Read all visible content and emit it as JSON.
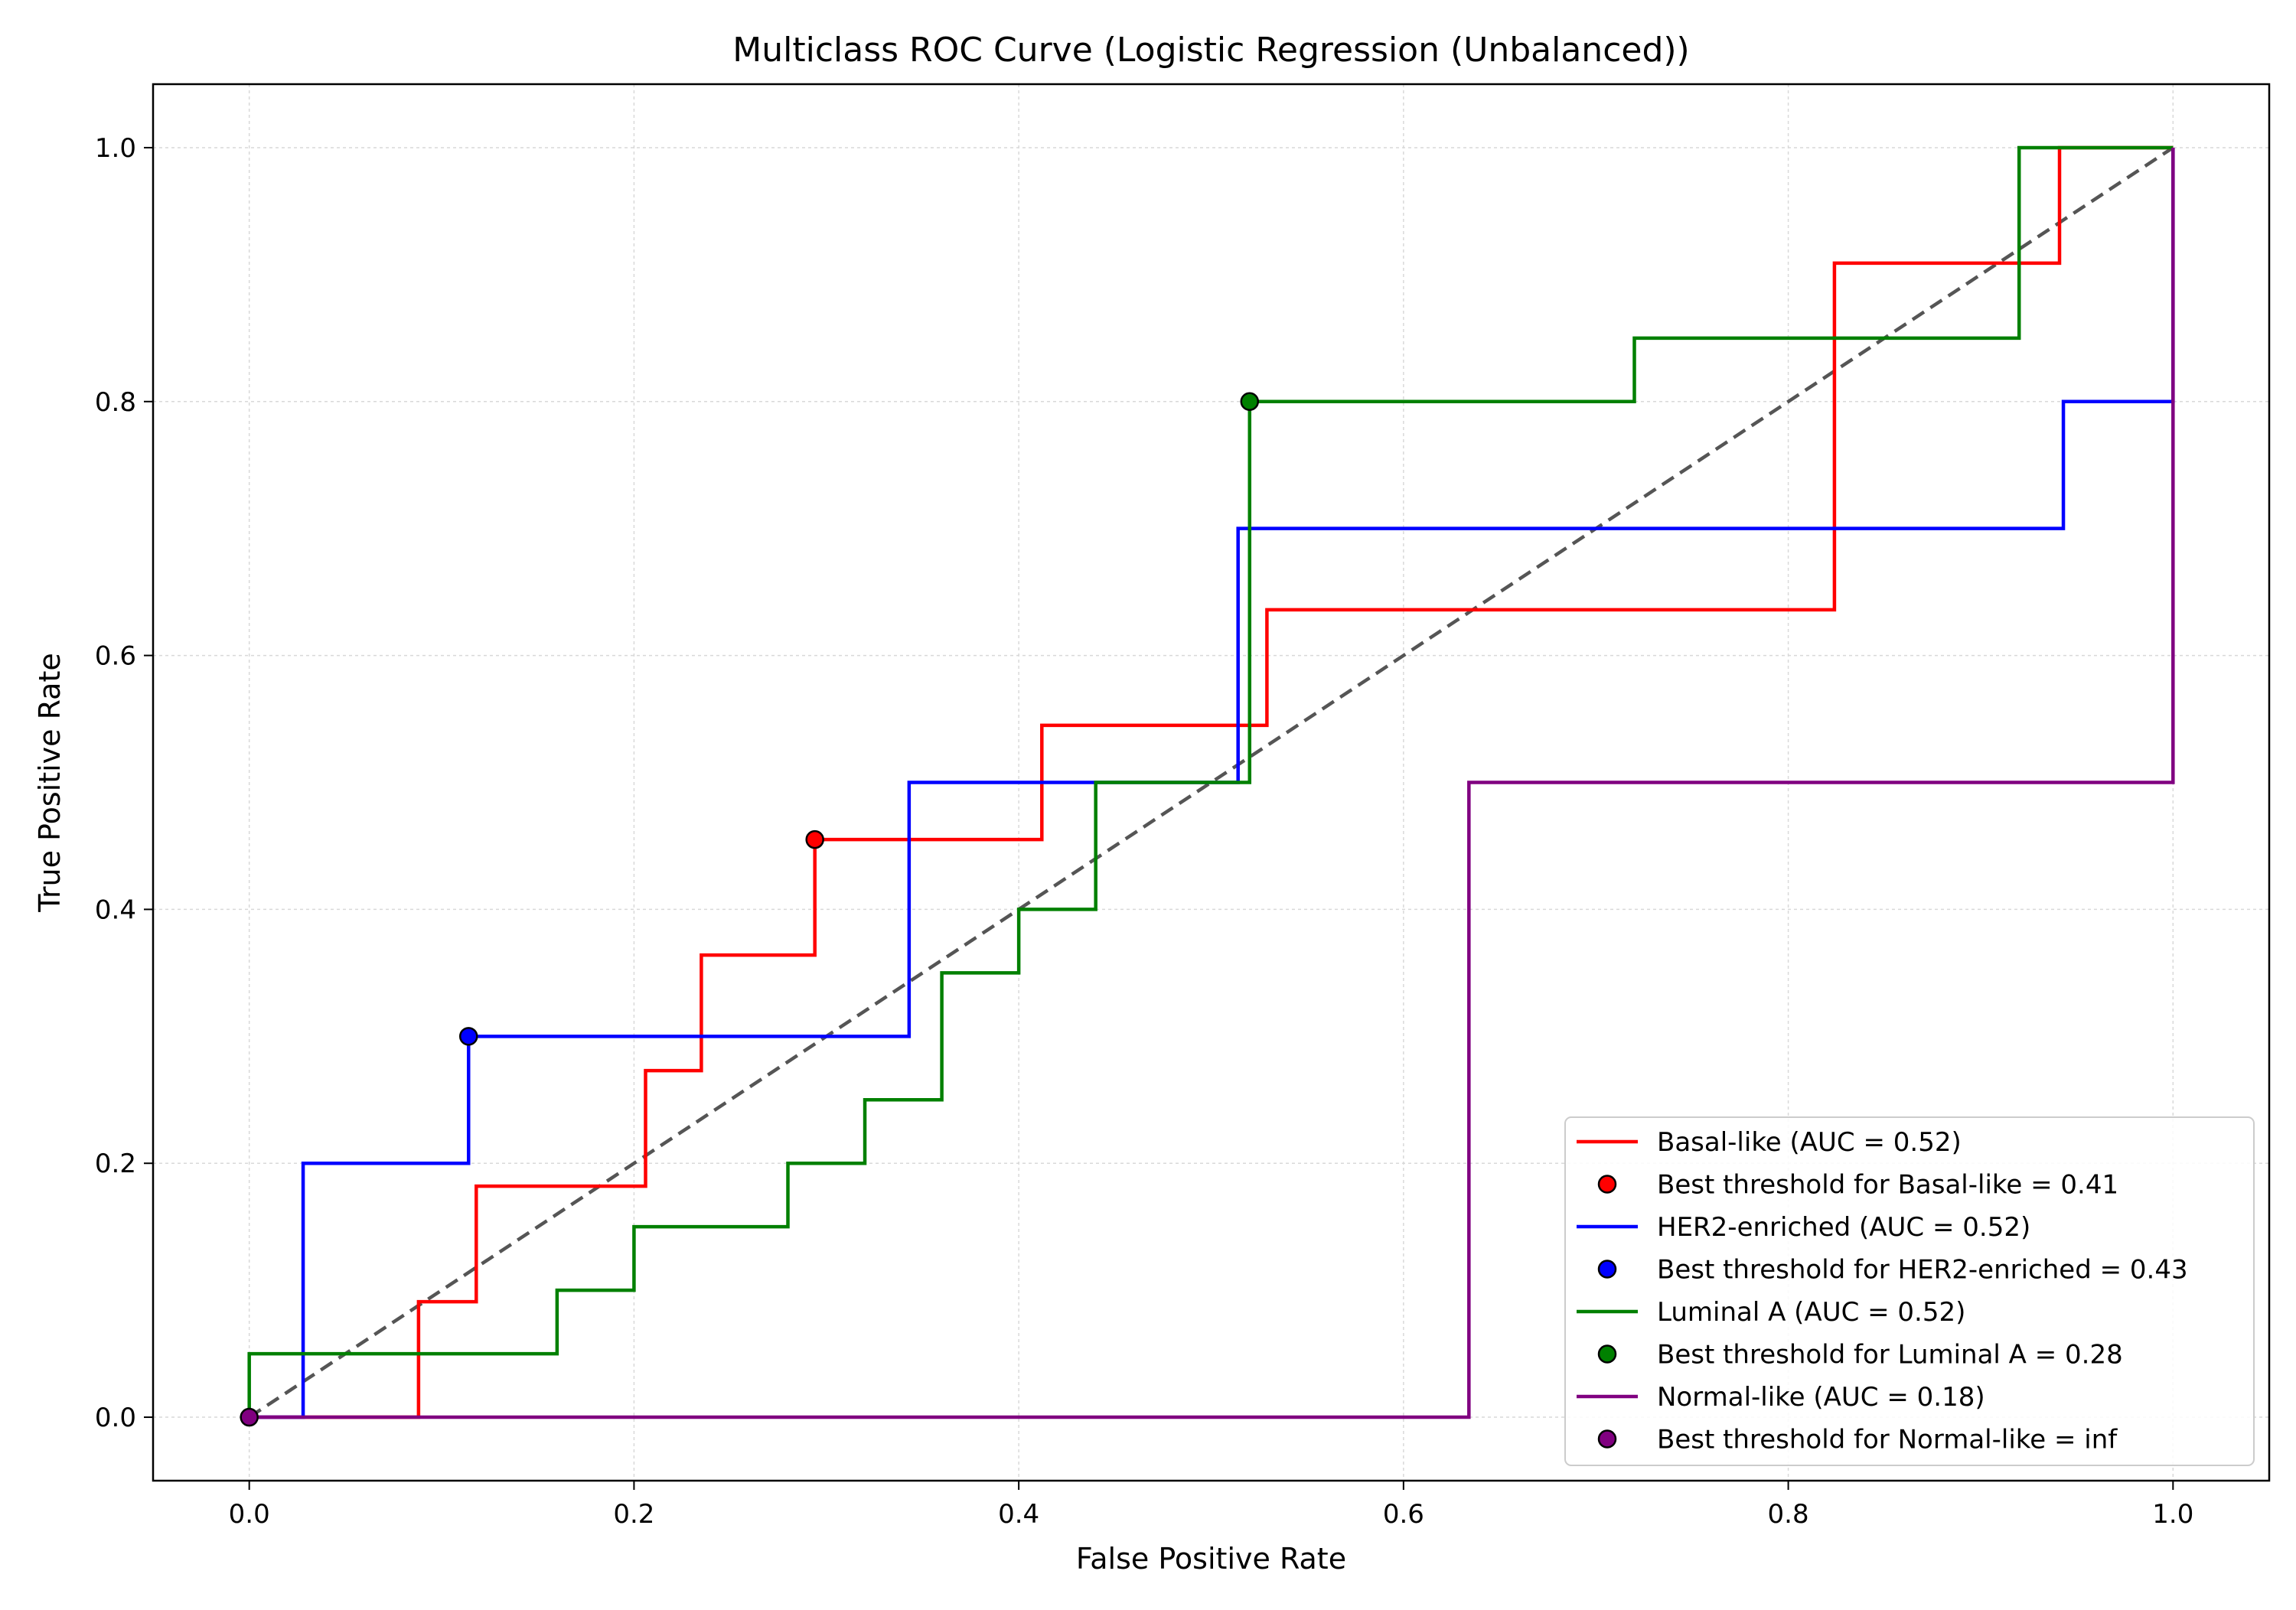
{
  "chart_data": {
    "type": "line",
    "title": "Multiclass ROC Curve (Logistic Regression (Unbalanced))",
    "xlabel": "False Positive Rate",
    "ylabel": "True Positive Rate",
    "xlim": [
      -0.05,
      1.05
    ],
    "ylim": [
      -0.05,
      1.05
    ],
    "xticks": [
      0.0,
      0.2,
      0.4,
      0.6,
      0.8,
      1.0
    ],
    "yticks": [
      0.0,
      0.2,
      0.4,
      0.6,
      0.8,
      1.0
    ],
    "xtick_labels": [
      "0.0",
      "0.2",
      "0.4",
      "0.6",
      "0.8",
      "1.0"
    ],
    "ytick_labels": [
      "0.0",
      "0.2",
      "0.4",
      "0.6",
      "0.8",
      "1.0"
    ],
    "grid": true,
    "legend_position": "lower-right",
    "reference_line": {
      "x": [
        0,
        1
      ],
      "y": [
        0,
        1
      ],
      "color": "#555555",
      "style": "dashed"
    },
    "series": [
      {
        "name": "Basal-like (AUC = 0.52)",
        "color": "#ff0000",
        "x": [
          0,
          0.088,
          0.088,
          0.118,
          0.118,
          0.206,
          0.206,
          0.235,
          0.235,
          0.294,
          0.294,
          0.412,
          0.412,
          0.529,
          0.529,
          0.824,
          0.824,
          0.941,
          0.941,
          1.0
        ],
        "y": [
          0,
          0,
          0.091,
          0.091,
          0.182,
          0.182,
          0.273,
          0.273,
          0.364,
          0.364,
          0.455,
          0.455,
          0.545,
          0.545,
          0.636,
          0.636,
          0.909,
          0.909,
          1.0,
          1.0
        ],
        "best_point": {
          "label": "Best threshold for Basal-like = 0.41",
          "x": 0.294,
          "y": 0.455
        }
      },
      {
        "name": "HER2-enriched (AUC = 0.52)",
        "color": "#0000ff",
        "x": [
          0,
          0.028,
          0.028,
          0.114,
          0.114,
          0.343,
          0.343,
          0.514,
          0.514,
          0.943,
          0.943,
          1.0,
          1.0
        ],
        "y": [
          0,
          0,
          0.2,
          0.2,
          0.3,
          0.3,
          0.5,
          0.5,
          0.7,
          0.7,
          0.8,
          0.8,
          1.0
        ],
        "best_point": {
          "label": "Best threshold for HER2-enriched = 0.43",
          "x": 0.114,
          "y": 0.3
        }
      },
      {
        "name": "Luminal A (AUC = 0.52)",
        "color": "#008000",
        "x": [
          0,
          0,
          0.16,
          0.16,
          0.2,
          0.2,
          0.28,
          0.28,
          0.32,
          0.32,
          0.36,
          0.36,
          0.4,
          0.4,
          0.44,
          0.44,
          0.52,
          0.52,
          0.72,
          0.72,
          0.92,
          0.92,
          1.0
        ],
        "y": [
          0,
          0.05,
          0.05,
          0.1,
          0.1,
          0.15,
          0.15,
          0.2,
          0.2,
          0.25,
          0.25,
          0.35,
          0.35,
          0.4,
          0.4,
          0.5,
          0.5,
          0.8,
          0.8,
          0.85,
          0.85,
          1.0,
          1.0
        ],
        "best_point": {
          "label": "Best threshold for Luminal A = 0.28",
          "x": 0.52,
          "y": 0.8
        }
      },
      {
        "name": "Normal-like (AUC = 0.18)",
        "color": "#800080",
        "x": [
          0,
          0.634,
          0.634,
          1.0,
          1.0
        ],
        "y": [
          0,
          0,
          0.5,
          0.5,
          1.0
        ],
        "best_point": {
          "label": "Best threshold for Normal-like = inf",
          "x": 0,
          "y": 0
        }
      }
    ]
  }
}
